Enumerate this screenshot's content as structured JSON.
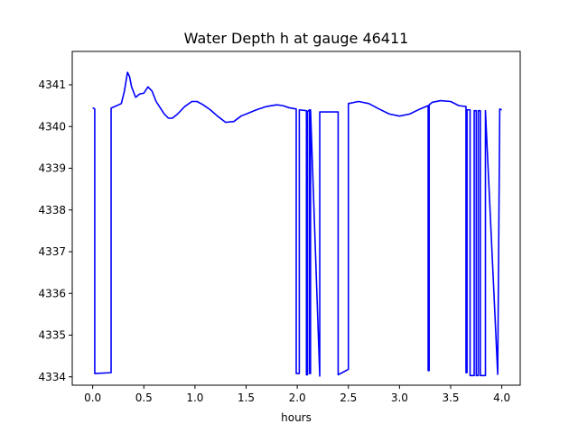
{
  "chart_data": {
    "type": "line",
    "title": "Water Depth h at gauge 46411",
    "xlabel": "hours",
    "ylabel": "",
    "xlim": [
      -0.2,
      4.18
    ],
    "ylim": [
      4333.8,
      4341.8
    ],
    "xticks": [
      0.0,
      0.5,
      1.0,
      1.5,
      2.0,
      2.5,
      3.0,
      3.5,
      4.0
    ],
    "xtick_labels": [
      "0.0",
      "0.5",
      "1.0",
      "1.5",
      "2.0",
      "2.5",
      "3.0",
      "3.5",
      "4.0"
    ],
    "yticks": [
      4334,
      4335,
      4336,
      4337,
      4338,
      4339,
      4340,
      4341
    ],
    "ytick_labels": [
      "4334",
      "4335",
      "4336",
      "4337",
      "4338",
      "4339",
      "4340",
      "4341"
    ],
    "grid": false,
    "series": [
      {
        "color": "#0000ff",
        "x": [
          0.0,
          0.02,
          0.02,
          0.18,
          0.18,
          0.28,
          0.31,
          0.34,
          0.36,
          0.38,
          0.42,
          0.46,
          0.5,
          0.54,
          0.58,
          0.62,
          0.66,
          0.7,
          0.74,
          0.78,
          0.83,
          0.9,
          0.97,
          1.02,
          1.08,
          1.15,
          1.22,
          1.3,
          1.38,
          1.45,
          1.52,
          1.6,
          1.7,
          1.8,
          1.86,
          1.92,
          1.99,
          1.99,
          2.02,
          2.02,
          2.09,
          2.09,
          2.1,
          2.1,
          2.12,
          2.12,
          2.13,
          2.13,
          2.22,
          2.22,
          2.4,
          2.4,
          2.5,
          2.5,
          2.6,
          2.7,
          2.8,
          2.9,
          3.0,
          3.1,
          3.2,
          3.28,
          3.28,
          3.29,
          3.29,
          3.32,
          3.4,
          3.5,
          3.58,
          3.65,
          3.65,
          3.66,
          3.66,
          3.69,
          3.69,
          3.73,
          3.73,
          3.75,
          3.75,
          3.77,
          3.77,
          3.79,
          3.79,
          3.84,
          3.84,
          3.96,
          3.96,
          3.98,
          4.0
        ],
        "y": [
          4340.45,
          4340.42,
          4334.08,
          4334.1,
          4340.44,
          4340.55,
          4340.85,
          4341.3,
          4341.2,
          4340.95,
          4340.7,
          4340.78,
          4340.8,
          4340.95,
          4340.85,
          4340.6,
          4340.45,
          4340.3,
          4340.2,
          4340.2,
          4340.3,
          4340.48,
          4340.6,
          4340.6,
          4340.52,
          4340.4,
          4340.25,
          4340.1,
          4340.12,
          4340.25,
          4340.32,
          4340.4,
          4340.48,
          4340.52,
          4340.5,
          4340.45,
          4340.42,
          4334.08,
          4334.08,
          4340.4,
          4340.38,
          4334.05,
          4334.05,
          4340.36,
          4340.4,
          4334.08,
          4334.08,
          4340.4,
          4334.02,
          4340.35,
          4340.35,
          4334.05,
          4334.18,
          4340.55,
          4340.6,
          4340.55,
          4340.42,
          4340.3,
          4340.25,
          4340.3,
          4340.42,
          4340.5,
          4334.15,
          4334.15,
          4340.52,
          4340.58,
          4340.62,
          4340.6,
          4340.5,
          4340.48,
          4334.1,
          4334.1,
          4340.4,
          4340.4,
          4334.03,
          4334.03,
          4340.38,
          4340.38,
          4334.03,
          4334.03,
          4340.38,
          4340.38,
          4334.03,
          4334.03,
          4340.38,
          4334.06,
          4334.06,
          4340.42,
          4340.4
        ]
      }
    ]
  }
}
